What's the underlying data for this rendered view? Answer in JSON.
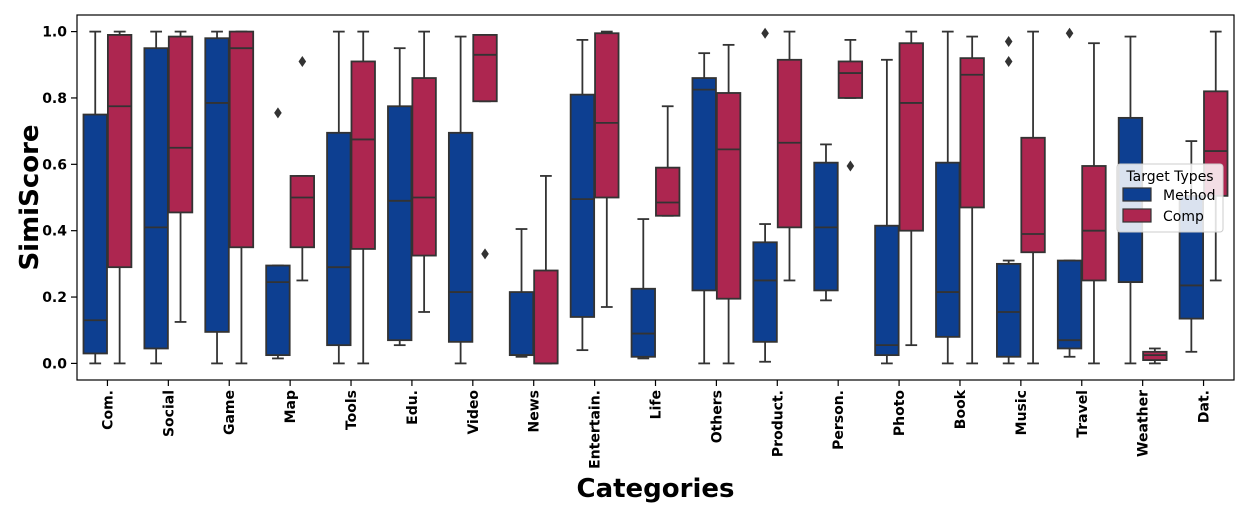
{
  "chart_data": {
    "type": "box",
    "title": "",
    "xlabel": "Categories",
    "ylabel": "SimiScore",
    "ylim": [
      -0.05,
      1.05
    ],
    "yticks": [
      "0.0",
      "0.2",
      "0.4",
      "0.6",
      "0.8",
      "1.0"
    ],
    "ytick_values": [
      0.0,
      0.2,
      0.4,
      0.6,
      0.8,
      1.0
    ],
    "grid": false,
    "legend": {
      "title": "Target Types",
      "position": "right"
    },
    "colors": {
      "Method": "#0d3f91",
      "Comp": "#ad2650",
      "edge": "#333333"
    },
    "categories": [
      "Com.",
      "Social",
      "Game",
      "Map",
      "Tools",
      "Edu.",
      "Video",
      "News",
      "Entertain.",
      "Life",
      "Others",
      "Product.",
      "Person.",
      "Photo",
      "Book",
      "Music",
      "Travel",
      "Weather",
      "Dat."
    ],
    "series": [
      {
        "name": "Method",
        "boxes": [
          {
            "min": 0.0,
            "q1": 0.03,
            "median": 0.13,
            "q3": 0.75,
            "max": 1.0,
            "outliers": []
          },
          {
            "min": 0.0,
            "q1": 0.045,
            "median": 0.41,
            "q3": 0.95,
            "max": 1.0,
            "outliers": []
          },
          {
            "min": 0.0,
            "q1": 0.095,
            "median": 0.785,
            "q3": 0.98,
            "max": 1.0,
            "outliers": []
          },
          {
            "min": 0.015,
            "q1": 0.025,
            "median": 0.245,
            "q3": 0.295,
            "max": 0.295,
            "outliers": [
              0.755
            ]
          },
          {
            "min": 0.0,
            "q1": 0.055,
            "median": 0.29,
            "q3": 0.695,
            "max": 1.0,
            "outliers": []
          },
          {
            "min": 0.055,
            "q1": 0.07,
            "median": 0.49,
            "q3": 0.775,
            "max": 0.95,
            "outliers": []
          },
          {
            "min": 0.0,
            "q1": 0.065,
            "median": 0.215,
            "q3": 0.695,
            "max": 0.985,
            "outliers": []
          },
          {
            "min": 0.02,
            "q1": 0.025,
            "median": 0.025,
            "q3": 0.215,
            "max": 0.405,
            "outliers": []
          },
          {
            "min": 0.04,
            "q1": 0.14,
            "median": 0.495,
            "q3": 0.81,
            "max": 0.975,
            "outliers": []
          },
          {
            "min": 0.015,
            "q1": 0.02,
            "median": 0.09,
            "q3": 0.225,
            "max": 0.435,
            "outliers": []
          },
          {
            "min": 0.0,
            "q1": 0.22,
            "median": 0.825,
            "q3": 0.86,
            "max": 0.935,
            "outliers": []
          },
          {
            "min": 0.005,
            "q1": 0.065,
            "median": 0.25,
            "q3": 0.365,
            "max": 0.42,
            "outliers": [
              0.995
            ]
          },
          {
            "min": 0.19,
            "q1": 0.22,
            "median": 0.41,
            "q3": 0.605,
            "max": 0.66,
            "outliers": []
          },
          {
            "min": 0.0,
            "q1": 0.025,
            "median": 0.055,
            "q3": 0.415,
            "max": 0.915,
            "outliers": []
          },
          {
            "min": 0.0,
            "q1": 0.08,
            "median": 0.215,
            "q3": 0.605,
            "max": 1.0,
            "outliers": []
          },
          {
            "min": 0.0,
            "q1": 0.02,
            "median": 0.155,
            "q3": 0.3,
            "max": 0.31,
            "outliers": [
              0.97,
              0.91
            ]
          },
          {
            "min": 0.02,
            "q1": 0.045,
            "median": 0.07,
            "q3": 0.31,
            "max": 0.31,
            "outliers": [
              0.995
            ]
          },
          {
            "min": 0.0,
            "q1": 0.245,
            "median": 0.245,
            "q3": 0.74,
            "max": 0.985,
            "outliers": []
          },
          {
            "min": 0.035,
            "q1": 0.135,
            "median": 0.235,
            "q3": 0.505,
            "max": 0.67,
            "outliers": []
          }
        ]
      },
      {
        "name": "Comp",
        "boxes": [
          {
            "min": 0.0,
            "q1": 0.29,
            "median": 0.775,
            "q3": 0.99,
            "max": 1.0,
            "outliers": []
          },
          {
            "min": 0.125,
            "q1": 0.455,
            "median": 0.65,
            "q3": 0.985,
            "max": 1.0,
            "outliers": []
          },
          {
            "min": 0.0,
            "q1": 0.35,
            "median": 0.95,
            "q3": 1.0,
            "max": 1.0,
            "outliers": []
          },
          {
            "min": 0.25,
            "q1": 0.35,
            "median": 0.5,
            "q3": 0.565,
            "max": 0.565,
            "outliers": [
              0.91
            ]
          },
          {
            "min": 0.0,
            "q1": 0.345,
            "median": 0.675,
            "q3": 0.91,
            "max": 1.0,
            "outliers": []
          },
          {
            "min": 0.155,
            "q1": 0.325,
            "median": 0.5,
            "q3": 0.86,
            "max": 1.0,
            "outliers": []
          },
          {
            "min": 0.79,
            "q1": 0.79,
            "median": 0.93,
            "q3": 0.99,
            "max": 0.99,
            "outliers": [
              0.33
            ]
          },
          {
            "min": 0.0,
            "q1": 0.0,
            "median": 0.0,
            "q3": 0.28,
            "max": 0.565,
            "outliers": []
          },
          {
            "min": 0.17,
            "q1": 0.5,
            "median": 0.725,
            "q3": 0.995,
            "max": 1.0,
            "outliers": []
          },
          {
            "min": 0.445,
            "q1": 0.445,
            "median": 0.485,
            "q3": 0.59,
            "max": 0.775,
            "outliers": []
          },
          {
            "min": 0.0,
            "q1": 0.195,
            "median": 0.645,
            "q3": 0.815,
            "max": 0.96,
            "outliers": []
          },
          {
            "min": 0.25,
            "q1": 0.41,
            "median": 0.665,
            "q3": 0.915,
            "max": 1.0,
            "outliers": []
          },
          {
            "min": 0.8,
            "q1": 0.8,
            "median": 0.875,
            "q3": 0.91,
            "max": 0.975,
            "outliers": [
              0.595
            ]
          },
          {
            "min": 0.055,
            "q1": 0.4,
            "median": 0.785,
            "q3": 0.965,
            "max": 1.0,
            "outliers": []
          },
          {
            "min": 0.0,
            "q1": 0.47,
            "median": 0.87,
            "q3": 0.92,
            "max": 0.985,
            "outliers": []
          },
          {
            "min": 0.0,
            "q1": 0.335,
            "median": 0.39,
            "q3": 0.68,
            "max": 1.0,
            "outliers": []
          },
          {
            "min": 0.0,
            "q1": 0.25,
            "median": 0.4,
            "q3": 0.595,
            "max": 0.965,
            "outliers": []
          },
          {
            "min": 0.0,
            "q1": 0.01,
            "median": 0.025,
            "q3": 0.035,
            "max": 0.045,
            "outliers": []
          },
          {
            "min": 0.25,
            "q1": 0.505,
            "median": 0.64,
            "q3": 0.82,
            "max": 1.0,
            "outliers": []
          }
        ]
      }
    ]
  }
}
